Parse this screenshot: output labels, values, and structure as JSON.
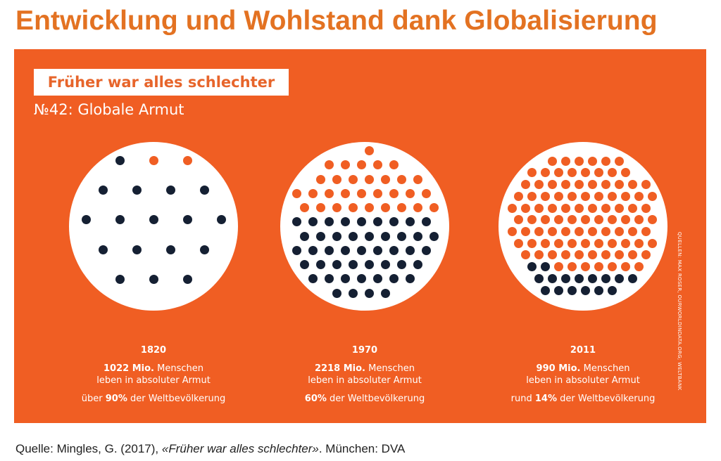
{
  "slide": {
    "title": "Entwicklung und Wohlstand dank Globalisierung"
  },
  "infographic": {
    "label": "Früher war alles schlechter",
    "subtitle": "№42: Globale Armut",
    "credit": "QUELLEN: MAX ROSER, OURWORLDINDATA.ORG; WELTBANK",
    "colors": {
      "background": "#F05E23",
      "poor": "#152033",
      "not_poor": "#F05E23",
      "circle": "#FFFFFF"
    },
    "panels": [
      {
        "year": "1820",
        "count": "1022 Mio.",
        "count_suffix": " Menschen",
        "line2": "leben in absoluter Armut",
        "share_prefix": "über ",
        "share": "90%",
        "share_suffix": " der Weltbevölkerung",
        "poor_fraction": 0.9
      },
      {
        "year": "1970",
        "count": "2218 Mio.",
        "count_suffix": " Menschen",
        "line2": "leben in absoluter Armut",
        "share_prefix": "",
        "share": "60%",
        "share_suffix": " der Weltbevölkerung",
        "poor_fraction": 0.6
      },
      {
        "year": "2011",
        "count": "990 Mio.",
        "count_suffix": " Menschen",
        "line2": "leben in absoluter Armut",
        "share_prefix": "rund ",
        "share": "14%",
        "share_suffix": " der Weltbevölkerung",
        "poor_fraction": 0.14
      }
    ]
  },
  "source": {
    "prefix": "Quelle: Mingles, G. (2017), ",
    "book": "«Früher war alles schlechter»",
    "suffix": ". München: DVA"
  }
}
